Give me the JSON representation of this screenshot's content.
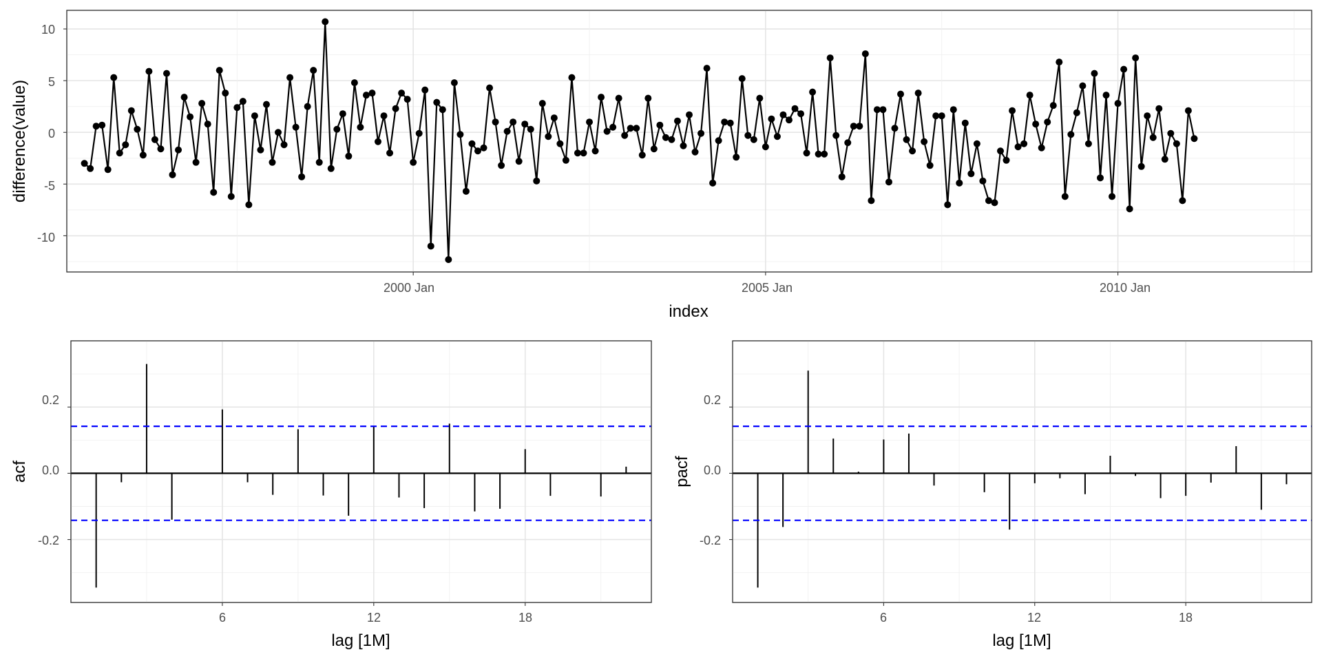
{
  "colors": {
    "series": "#000000",
    "ci": "#0000ff",
    "grid": "#e5e5e5",
    "frame": "#333333"
  },
  "chart_data": [
    {
      "type": "line",
      "markers": true,
      "xlabel": "index",
      "ylabel": "difference(value)",
      "x_ticks": [
        "2000 Jan",
        "2005 Jan",
        "2010 Jan"
      ],
      "y_ticks": [
        "-10",
        "-5",
        "0",
        "5",
        "10"
      ],
      "ylim": [
        -13.5,
        11.8
      ],
      "x_start": "1995-05",
      "xlim": [
        "1995-02",
        "2012-10"
      ],
      "y": [
        -3.0,
        -3.5,
        0.6,
        0.7,
        -3.6,
        5.3,
        -2.0,
        -1.2,
        2.1,
        0.3,
        -2.2,
        5.9,
        -0.7,
        -1.6,
        5.7,
        -4.1,
        -1.7,
        3.4,
        1.5,
        -2.9,
        2.8,
        0.8,
        -5.8,
        6.0,
        3.8,
        -6.2,
        2.4,
        3.0,
        -7.0,
        1.6,
        -1.7,
        2.7,
        -2.9,
        0.0,
        -1.2,
        5.3,
        0.5,
        -4.3,
        2.5,
        6.0,
        -2.9,
        10.7,
        -3.5,
        0.3,
        1.8,
        -2.3,
        4.8,
        0.5,
        3.6,
        3.8,
        -0.9,
        1.6,
        -2.0,
        2.3,
        3.8,
        3.2,
        -2.9,
        -0.1,
        4.1,
        -11.0,
        2.9,
        2.2,
        -12.3,
        4.8,
        -0.2,
        -5.7,
        -1.1,
        -1.8,
        -1.5,
        4.3,
        1.0,
        -3.2,
        0.1,
        1.0,
        -2.8,
        0.8,
        0.3,
        -4.7,
        2.8,
        -0.4,
        1.4,
        -1.1,
        -2.7,
        5.3,
        -2.0,
        -2.0,
        1.0,
        -1.8,
        3.4,
        0.1,
        0.5,
        3.3,
        -0.3,
        0.4,
        0.4,
        -2.2,
        3.3,
        -1.6,
        0.7,
        -0.5,
        -0.7,
        1.1,
        -1.3,
        1.7,
        -1.9,
        -0.1,
        6.2,
        -4.9,
        -0.8,
        1.0,
        0.9,
        -2.4,
        5.2,
        -0.3,
        -0.7,
        3.3,
        -1.4,
        1.3,
        -0.4,
        1.7,
        1.2,
        2.3,
        1.8,
        -2.0,
        3.9,
        -2.1,
        -2.1,
        7.2,
        -0.3,
        -4.3,
        -1.0,
        0.6,
        0.6,
        7.6,
        -6.6,
        2.2,
        2.2,
        -4.8,
        0.4,
        3.7,
        -0.7,
        -1.8,
        3.8,
        -0.9,
        -3.2,
        1.6,
        1.6,
        -7.0,
        2.2,
        -4.9,
        0.9,
        -4.0,
        -1.1,
        -4.7,
        -6.6,
        -6.8,
        -1.8,
        -2.7,
        2.1,
        -1.4,
        -1.1,
        3.6,
        0.8,
        -1.5,
        1.0,
        2.6,
        6.8,
        -6.2,
        -0.2,
        1.9,
        4.5,
        -1.1,
        5.7,
        -4.4,
        3.6,
        -6.2,
        2.8,
        6.1,
        -7.4,
        7.2,
        -3.3,
        1.6,
        -0.5,
        2.3,
        -2.6,
        -0.1,
        -1.1,
        -6.6,
        2.1,
        -0.6
      ]
    },
    {
      "type": "bar",
      "xlabel": "lag [1M]",
      "ylabel": "acf",
      "x_ticks": [
        "6",
        "12",
        "18"
      ],
      "y_ticks": [
        "-0.2",
        "0.0",
        "0.2"
      ],
      "xlim": [
        0,
        23
      ],
      "ylim": [
        -0.39,
        0.4
      ],
      "ci": 0.142,
      "lags": [
        1,
        2,
        3,
        4,
        5,
        6,
        7,
        8,
        9,
        10,
        11,
        12,
        13,
        14,
        15,
        16,
        17,
        18,
        19,
        20,
        21,
        22
      ],
      "values": [
        -0.345,
        -0.027,
        0.33,
        -0.14,
        0.0,
        0.193,
        -0.027,
        -0.065,
        0.133,
        -0.067,
        -0.128,
        0.142,
        -0.073,
        -0.105,
        0.15,
        -0.115,
        -0.107,
        0.073,
        -0.068,
        0.0,
        -0.07,
        0.02
      ]
    },
    {
      "type": "bar",
      "xlabel": "lag [1M]",
      "ylabel": "pacf",
      "x_ticks": [
        "6",
        "12",
        "18"
      ],
      "y_ticks": [
        "-0.2",
        "0.0",
        "0.2"
      ],
      "xlim": [
        0,
        23
      ],
      "ylim": [
        -0.39,
        0.4
      ],
      "ci": 0.142,
      "lags": [
        1,
        2,
        3,
        4,
        5,
        6,
        7,
        8,
        9,
        10,
        11,
        12,
        13,
        14,
        15,
        16,
        17,
        18,
        19,
        20,
        21,
        22
      ],
      "values": [
        -0.345,
        -0.162,
        0.31,
        0.105,
        0.005,
        0.102,
        0.12,
        -0.037,
        0.0,
        -0.057,
        -0.17,
        -0.03,
        -0.015,
        -0.063,
        0.053,
        -0.008,
        -0.075,
        -0.068,
        -0.028,
        0.082,
        -0.11,
        -0.033
      ]
    }
  ]
}
